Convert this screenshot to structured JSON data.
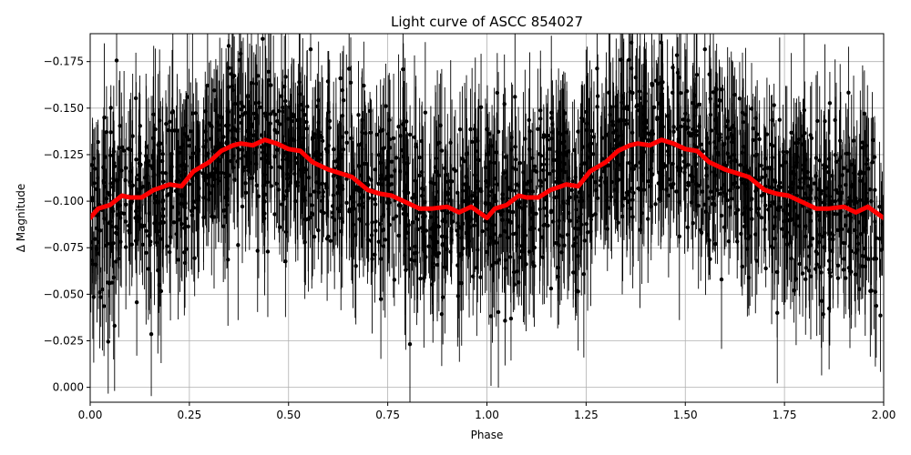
{
  "chart_data": {
    "type": "scatter",
    "title": "Light curve of ASCC 854027",
    "xlabel": "Phase",
    "ylabel": "Δ Magnitude",
    "xlim": [
      0.0,
      2.0
    ],
    "ylim": [
      0.008,
      -0.19
    ],
    "y_axis_inverted": true,
    "grid": true,
    "xticks": [
      {
        "value": 0.0,
        "label": "0.00"
      },
      {
        "value": 0.25,
        "label": "0.25"
      },
      {
        "value": 0.5,
        "label": "0.50"
      },
      {
        "value": 0.75,
        "label": "0.75"
      },
      {
        "value": 1.0,
        "label": "1.00"
      },
      {
        "value": 1.25,
        "label": "1.25"
      },
      {
        "value": 1.5,
        "label": "1.50"
      },
      {
        "value": 1.75,
        "label": "1.75"
      },
      {
        "value": 2.0,
        "label": "2.00"
      }
    ],
    "yticks": [
      {
        "value": -0.175,
        "label": "−0.175"
      },
      {
        "value": -0.15,
        "label": "−0.150"
      },
      {
        "value": -0.125,
        "label": "−0.125"
      },
      {
        "value": -0.1,
        "label": "−0.100"
      },
      {
        "value": -0.075,
        "label": "−0.075"
      },
      {
        "value": -0.05,
        "label": "−0.050"
      },
      {
        "value": -0.025,
        "label": "−0.025"
      },
      {
        "value": 0.0,
        "label": "0.000"
      }
    ],
    "series": [
      {
        "kind": "errorbar-scatter",
        "color": "#000000",
        "mean_level": -0.11,
        "typical_scatter": 0.03,
        "typical_error": 0.025,
        "point_count_approx": 2000
      },
      {
        "kind": "binned-line",
        "color": "#ff0000",
        "x": [
          0.0,
          0.02,
          0.05,
          0.08,
          0.1,
          0.13,
          0.16,
          0.2,
          0.23,
          0.26,
          0.3,
          0.33,
          0.36,
          0.38,
          0.41,
          0.44,
          0.47,
          0.5,
          0.53,
          0.56,
          0.6,
          0.63,
          0.66,
          0.7,
          0.73,
          0.76,
          0.8,
          0.83,
          0.86,
          0.9,
          0.93,
          0.96,
          1.0,
          1.02,
          1.05,
          1.08,
          1.1,
          1.13,
          1.16,
          1.2,
          1.23,
          1.26,
          1.3,
          1.33,
          1.36,
          1.38,
          1.41,
          1.44,
          1.47,
          1.5,
          1.53,
          1.56,
          1.6,
          1.63,
          1.66,
          1.7,
          1.73,
          1.76,
          1.8,
          1.83,
          1.86,
          1.9,
          1.93,
          1.96,
          2.0
        ],
        "y": [
          -0.091,
          -0.096,
          -0.098,
          -0.103,
          -0.102,
          -0.102,
          -0.106,
          -0.109,
          -0.108,
          -0.116,
          -0.121,
          -0.127,
          -0.13,
          -0.131,
          -0.13,
          -0.133,
          -0.131,
          -0.128,
          -0.127,
          -0.121,
          -0.117,
          -0.115,
          -0.113,
          -0.106,
          -0.104,
          -0.103,
          -0.099,
          -0.096,
          -0.096,
          -0.097,
          -0.094,
          -0.097,
          -0.091,
          -0.096,
          -0.098,
          -0.103,
          -0.102,
          -0.102,
          -0.106,
          -0.109,
          -0.108,
          -0.116,
          -0.121,
          -0.127,
          -0.13,
          -0.131,
          -0.13,
          -0.133,
          -0.131,
          -0.128,
          -0.127,
          -0.121,
          -0.117,
          -0.115,
          -0.113,
          -0.106,
          -0.104,
          -0.103,
          -0.099,
          -0.096,
          -0.096,
          -0.097,
          -0.094,
          -0.097,
          -0.091
        ]
      }
    ]
  }
}
